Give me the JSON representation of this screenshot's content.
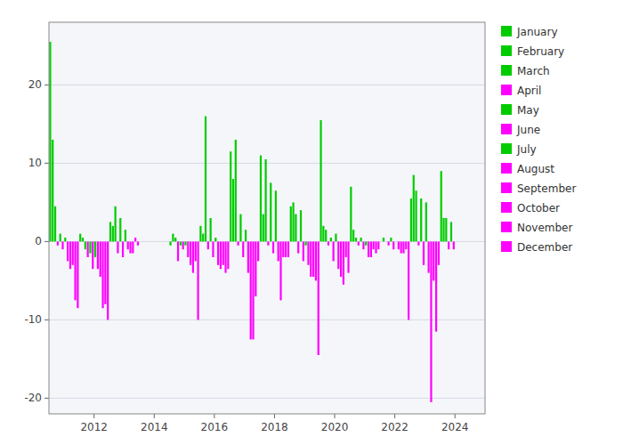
{
  "chart_data": {
    "type": "bar",
    "series": [
      {
        "name": "January",
        "color": "#00cc00",
        "x": [
          2011,
          2012,
          2013,
          2015,
          2016,
          2017,
          2018,
          2019,
          2020,
          2021,
          2022,
          2023,
          2024
        ],
        "values": [
          25.5,
          1.0,
          2.5,
          -0.5,
          2.0,
          11.5,
          11.0,
          4.5,
          15.5,
          7.0,
          0.0,
          5.5,
          9.0
        ]
      },
      {
        "name": "February",
        "color": "#00cc00",
        "x": [
          2011,
          2012,
          2013,
          2015,
          2016,
          2017,
          2018,
          2019,
          2020,
          2021,
          2022,
          2023,
          2024
        ],
        "values": [
          13.0,
          0.5,
          2.0,
          1.0,
          1.0,
          8.0,
          3.5,
          5.0,
          2.0,
          1.5,
          0.5,
          8.5,
          3.0
        ]
      },
      {
        "name": "March",
        "color": "#00cc00",
        "x": [
          2011,
          2012,
          2013,
          2015,
          2016,
          2017,
          2018,
          2019,
          2020,
          2021,
          2022,
          2023,
          2024
        ],
        "values": [
          4.5,
          -1.0,
          4.5,
          0.5,
          16.0,
          13.0,
          10.5,
          3.5,
          1.5,
          0.5,
          0.0,
          6.5,
          3.0
        ]
      },
      {
        "name": "April",
        "color": "#ff00ff",
        "x": [
          2011,
          2012,
          2013,
          2015,
          2016,
          2017,
          2018,
          2019,
          2020,
          2021,
          2022,
          2023,
          2024
        ],
        "values": [
          -0.5,
          -2.0,
          -1.5,
          -2.5,
          -1.0,
          -0.5,
          -0.5,
          -1.5,
          -0.5,
          -0.5,
          -0.5,
          -0.5,
          -1.0
        ]
      },
      {
        "name": "May",
        "color": "#00cc00",
        "x": [
          2011,
          2012,
          2013,
          2015,
          2016,
          2017,
          2018,
          2019,
          2020,
          2021,
          2022,
          2023,
          2024
        ],
        "values": [
          1.0,
          -1.5,
          3.0,
          -0.5,
          3.0,
          3.5,
          7.5,
          4.0,
          0.5,
          0.5,
          0.5,
          5.5,
          2.5
        ]
      },
      {
        "name": "June",
        "color": "#ff00ff",
        "x": [
          2011,
          2012,
          2013,
          2015,
          2016,
          2017,
          2018,
          2019,
          2020,
          2021,
          2022,
          2023,
          2024
        ],
        "values": [
          -1.0,
          -3.5,
          -2.0,
          -1.0,
          -2.0,
          -2.0,
          -1.5,
          -2.5,
          -2.5,
          -1.0,
          -1.0,
          -3.0,
          -1.0
        ]
      },
      {
        "name": "July",
        "color": "#00cc00",
        "x": [
          2011,
          2012,
          2013,
          2015,
          2016,
          2017,
          2018,
          2019,
          2020,
          2021,
          2022,
          2023
        ],
        "values": [
          0.5,
          -2.0,
          1.5,
          -0.5,
          0.5,
          1.5,
          6.5,
          -0.5,
          1.0,
          -0.5,
          0.0,
          5.0
        ]
      },
      {
        "name": "August",
        "color": "#ff00ff",
        "x": [
          2011,
          2012,
          2013,
          2015,
          2016,
          2017,
          2018,
          2019,
          2020,
          2021,
          2022,
          2023
        ],
        "values": [
          -2.5,
          -3.5,
          -1.0,
          -2.0,
          -3.0,
          -4.0,
          -2.5,
          -3.0,
          -3.5,
          -2.0,
          -1.0,
          -4.0
        ]
      },
      {
        "name": "September",
        "color": "#ff00ff",
        "x": [
          2011,
          2012,
          2013,
          2015,
          2016,
          2017,
          2018,
          2019,
          2020,
          2021,
          2022,
          2023
        ],
        "values": [
          -3.5,
          -4.5,
          -1.5,
          -3.0,
          -3.5,
          -12.5,
          -7.5,
          -4.5,
          -4.5,
          -2.0,
          -1.5,
          -20.5
        ]
      },
      {
        "name": "October",
        "color": "#ff00ff",
        "x": [
          2011,
          2012,
          2013,
          2015,
          2016,
          2017,
          2018,
          2019,
          2020,
          2021,
          2022,
          2023
        ],
        "values": [
          -3.0,
          -8.5,
          -1.5,
          -4.0,
          -3.0,
          -12.5,
          -2.0,
          -4.5,
          -5.5,
          -1.0,
          -1.5,
          -5.0
        ]
      },
      {
        "name": "November",
        "color": "#ff00ff",
        "x": [
          2011,
          2012,
          2013,
          2015,
          2016,
          2017,
          2018,
          2019,
          2020,
          2021,
          2022,
          2023
        ],
        "values": [
          -7.5,
          -8.0,
          0.5,
          -2.5,
          -4.0,
          -7.0,
          -2.0,
          -5.0,
          -2.0,
          -1.5,
          -1.0,
          -11.5
        ]
      },
      {
        "name": "December",
        "color": "#ff00ff",
        "x": [
          2011,
          2012,
          2013,
          2015,
          2016,
          2017,
          2018,
          2019,
          2020,
          2021,
          2022,
          2023
        ],
        "values": [
          -8.5,
          -10.0,
          -0.5,
          -10.0,
          -3.5,
          -2.5,
          -2.0,
          -14.5,
          -4.0,
          -1.0,
          -10.0,
          -3.0
        ]
      }
    ],
    "xlim": [
      2010.5,
      2025.0
    ],
    "xticks": [
      2012,
      2014,
      2016,
      2018,
      2020,
      2022,
      2024
    ],
    "ylim": [
      -22,
      28
    ],
    "yticks": [
      -20,
      -10,
      0,
      10,
      20
    ],
    "grid": true,
    "legend": "right"
  }
}
